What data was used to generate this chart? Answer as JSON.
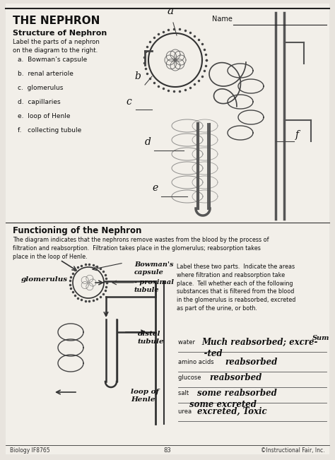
{
  "bg_color": "#e8e4de",
  "page_bg": "#f2efe9",
  "title": "THE NEPHRON",
  "subtitle": "Structure of Nephron",
  "label_intro": "Label the parts of a nephron\non the diagram to the right.",
  "parts_list": [
    "a.  Bowman’s capsule",
    "b.  renal arteriole",
    "c.  glomerulus",
    "d.  capillaries",
    "e.  loop of Henle",
    "f.   collecting tubule"
  ],
  "section2_title": "Functioning of the Nephron",
  "section2_body": "The diagram indicates that the nephrons remove wastes from the blood by the process of\nfiltration and reabsorption.  Filtration takes place in the glomerulus; reabsorption takes\nplace in the loop of Henle.",
  "label_instruction": "Label these two parts.  Indicate the areas\nwhere filtration and reabsorption take\nplace.  Tell whether each of the following\nsubstances that is filtered from the blood\nin the glomerulus is reabsorbed, excreted\nas part of the urine, or both.",
  "substances": [
    {
      "label": "water ",
      "answer": "Much reabsorbed; excre-",
      "answer2": "     -ted"
    },
    {
      "label": "amino acids ",
      "answer": "reabsorbed",
      "answer2": ""
    },
    {
      "label": "glucose ",
      "answer": "reabsorbed",
      "answer2": ""
    },
    {
      "label": "salt ",
      "answer": "some reabsorbed",
      "answer2": "some excreted"
    },
    {
      "label": "urea ",
      "answer": "excreted, Toxic",
      "answer2": ""
    }
  ],
  "footer_left": "Biology IF8765",
  "footer_center": "83",
  "footer_right": "©Instructional Fair, Inc."
}
